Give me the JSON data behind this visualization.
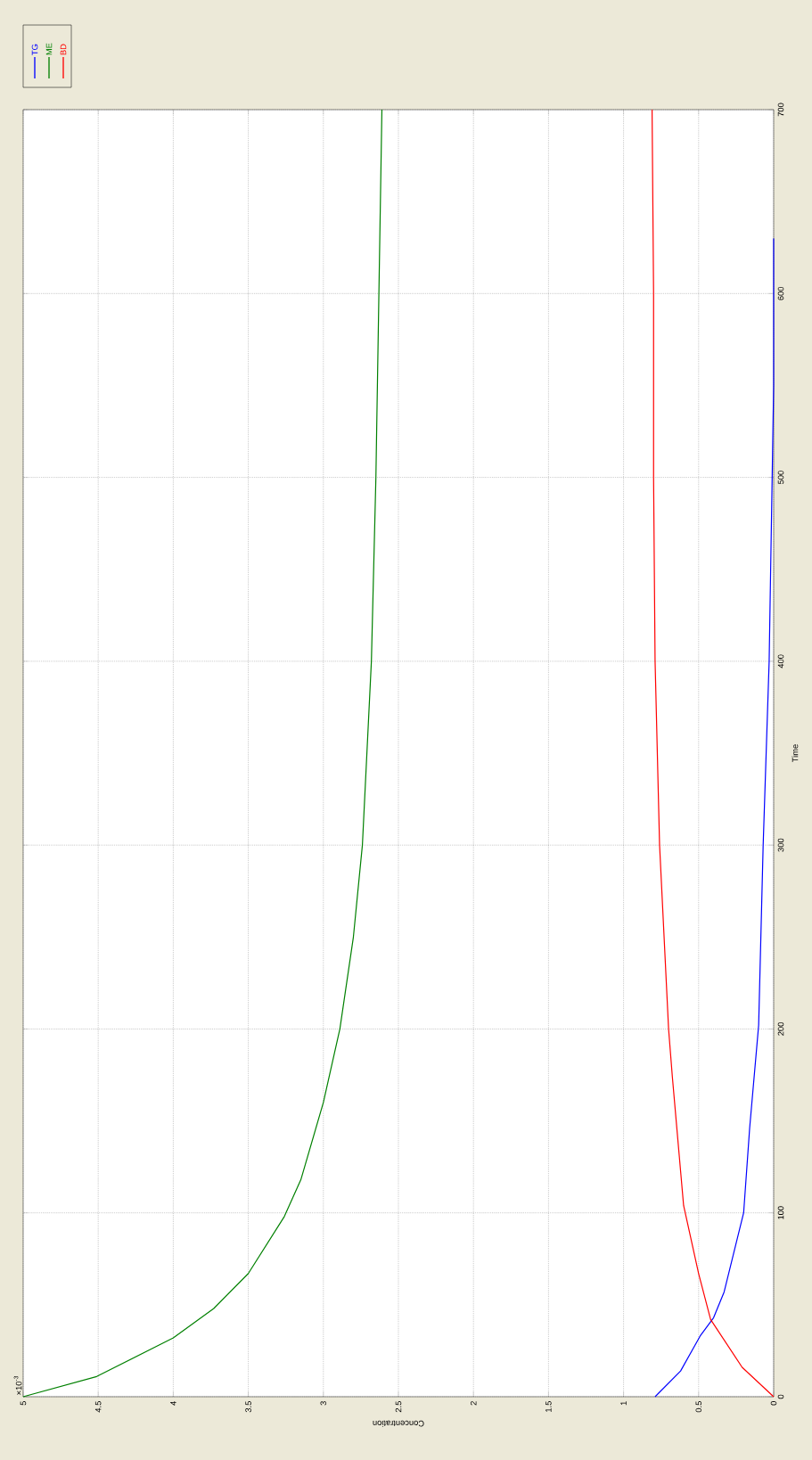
{
  "chart_data": {
    "type": "line",
    "xlabel": "Concentration",
    "ylabel": "Time",
    "annotations": [
      "×10$^{-3}$"
    ],
    "xlim": [
      5,
      0
    ],
    "xticks": [
      0,
      0.5,
      1,
      1.5,
      2,
      2.5,
      3,
      3.5,
      4,
      4.5,
      5
    ],
    "ylim": [
      0,
      700
    ],
    "yticks": [
      0,
      100,
      200,
      300,
      400,
      500,
      600,
      700
    ],
    "grid": true,
    "legend": "top left",
    "series": [
      {
        "name": "TG",
        "color": "#0000ff",
        "x": [
          0.79,
          0.62,
          0.49,
          0.4,
          0.33,
          0.2,
          0.16,
          0.1,
          0.07,
          0.03,
          0.01,
          0,
          0
        ],
        "values": [
          0,
          14,
          33,
          43,
          57,
          100,
          146,
          202,
          300,
          400,
          500,
          550,
          630
        ]
      },
      {
        "name": "ME",
        "color": "#008000",
        "x": [
          5,
          4.51,
          4.0,
          3.73,
          3.5,
          3.26,
          3.15,
          3.0,
          2.89,
          2.8,
          2.74,
          2.68,
          2.65,
          2.63,
          2.61
        ],
        "values": [
          0,
          11,
          32,
          48,
          67,
          98,
          118,
          160,
          200,
          250,
          300,
          400,
          500,
          600,
          700
        ]
      },
      {
        "name": "BD",
        "color": "#ff0000",
        "x": [
          0,
          0.21,
          0.42,
          0.5,
          0.6,
          0.63,
          0.675,
          0.7,
          0.76,
          0.79,
          0.8,
          0.8,
          0.81
        ],
        "values": [
          0,
          16,
          42,
          67,
          104,
          132,
          174,
          200,
          300,
          400,
          500,
          600,
          700
        ]
      }
    ]
  }
}
